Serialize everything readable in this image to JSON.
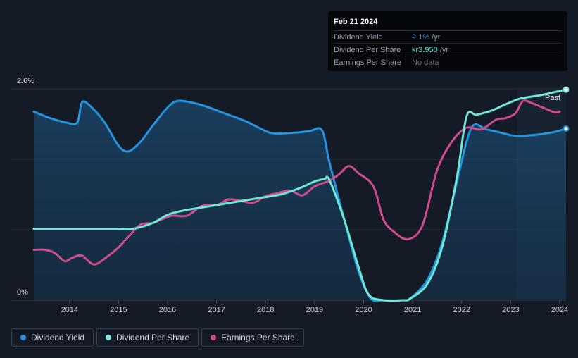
{
  "tooltip": {
    "date": "Feb 21 2024",
    "rows": [
      {
        "label": "Dividend Yield",
        "value": "2.1%",
        "unit": " /yr",
        "color": "#2394df"
      },
      {
        "label": "Dividend Per Share",
        "value": "kr3.950",
        "unit": " /yr",
        "color": "#6ee7d8"
      },
      {
        "label": "Earnings Per Share",
        "value": "No data",
        "unit": "",
        "color": "#6b717a"
      }
    ]
  },
  "legend": [
    {
      "label": "Dividend Yield",
      "color": "#2394df"
    },
    {
      "label": "Dividend Per Share",
      "color": "#6ee7d8"
    },
    {
      "label": "Earnings Per Share",
      "color": "#d04a8c"
    }
  ],
  "chart_data": {
    "type": "line",
    "title": "",
    "y_top_label": "2.6%",
    "y_bottom_label": "0%",
    "past_label": "Past",
    "xlim": [
      2013.27,
      2024.13
    ],
    "ylim": [
      0,
      2.6
    ],
    "x_ticks": [
      "2014",
      "2015",
      "2016",
      "2017",
      "2018",
      "2019",
      "2020",
      "2021",
      "2022",
      "2023",
      "2024"
    ],
    "x_tick_values": [
      2014,
      2015,
      2016,
      2017,
      2018,
      2019,
      2020,
      2021,
      2022,
      2023,
      2024
    ],
    "past_start": 2023.13,
    "series": [
      {
        "name": "Dividend Yield",
        "color": "#2394df",
        "fill": true,
        "end_marker": true,
        "x": [
          2013.27,
          2013.6,
          2013.9,
          2014.15,
          2014.25,
          2014.4,
          2014.7,
          2015.0,
          2015.2,
          2015.45,
          2015.7,
          2016.0,
          2016.2,
          2016.5,
          2016.8,
          2017.2,
          2017.6,
          2018.0,
          2018.2,
          2018.6,
          2018.9,
          2019.15,
          2019.3,
          2019.6,
          2019.9,
          2020.15,
          2020.4,
          2020.8,
          2020.95,
          2021.3,
          2021.6,
          2021.9,
          2022.2,
          2022.5,
          2022.8,
          2023.0,
          2023.2,
          2023.6,
          2023.9,
          2024.13
        ],
        "y": [
          2.32,
          2.24,
          2.19,
          2.18,
          2.43,
          2.4,
          2.2,
          1.9,
          1.83,
          1.95,
          2.15,
          2.37,
          2.45,
          2.43,
          2.38,
          2.29,
          2.2,
          2.08,
          2.05,
          2.06,
          2.08,
          2.09,
          1.7,
          1.0,
          0.35,
          0.02,
          0,
          0,
          0.02,
          0.25,
          0.7,
          1.45,
          2.12,
          2.1,
          2.06,
          2.03,
          2.02,
          2.04,
          2.07,
          2.11
        ]
      },
      {
        "name": "Dividend Per Share",
        "color": "#6ee7d8",
        "fill": false,
        "end_marker": true,
        "x": [
          2013.27,
          2014.0,
          2014.5,
          2015.0,
          2015.3,
          2015.7,
          2016.0,
          2016.3,
          2016.8,
          2017.3,
          2017.8,
          2018.3,
          2018.7,
          2019.0,
          2019.2,
          2019.3,
          2019.6,
          2019.9,
          2020.1,
          2020.4,
          2020.8,
          2020.95,
          2021.3,
          2021.6,
          2021.9,
          2022.1,
          2022.3,
          2022.6,
          2022.9,
          2023.2,
          2023.6,
          2023.9,
          2024.13
        ],
        "y": [
          0.88,
          0.88,
          0.88,
          0.88,
          0.88,
          0.95,
          1.05,
          1.1,
          1.15,
          1.2,
          1.25,
          1.3,
          1.38,
          1.46,
          1.49,
          1.48,
          1.0,
          0.4,
          0.07,
          0,
          0,
          0.02,
          0.2,
          0.65,
          1.5,
          2.26,
          2.28,
          2.33,
          2.41,
          2.48,
          2.52,
          2.56,
          2.59
        ]
      },
      {
        "name": "Earnings Per Share",
        "color": "#d04a8c",
        "fill": false,
        "end_marker": false,
        "x": [
          2013.27,
          2013.5,
          2013.7,
          2013.9,
          2014.05,
          2014.25,
          2014.5,
          2014.8,
          2015.0,
          2015.2,
          2015.45,
          2015.7,
          2015.9,
          2016.1,
          2016.4,
          2016.7,
          2017.0,
          2017.25,
          2017.5,
          2017.75,
          2018.0,
          2018.2,
          2018.5,
          2018.75,
          2019.0,
          2019.3,
          2019.5,
          2019.7,
          2019.9,
          2020.2,
          2020.4,
          2020.6,
          2020.9,
          2021.2,
          2021.5,
          2021.8,
          2022.1,
          2022.4,
          2022.7,
          2022.9,
          2023.1,
          2023.25,
          2023.45,
          2023.65,
          2023.9,
          2024.0
        ],
        "y": [
          0.62,
          0.62,
          0.58,
          0.48,
          0.52,
          0.55,
          0.44,
          0.55,
          0.65,
          0.78,
          0.93,
          0.95,
          1.0,
          1.04,
          1.04,
          1.16,
          1.17,
          1.24,
          1.22,
          1.2,
          1.28,
          1.31,
          1.35,
          1.29,
          1.4,
          1.47,
          1.55,
          1.65,
          1.56,
          1.4,
          1.0,
          0.85,
          0.75,
          0.92,
          1.6,
          1.95,
          2.12,
          2.1,
          2.22,
          2.24,
          2.3,
          2.45,
          2.42,
          2.37,
          2.31,
          2.32
        ]
      }
    ]
  }
}
